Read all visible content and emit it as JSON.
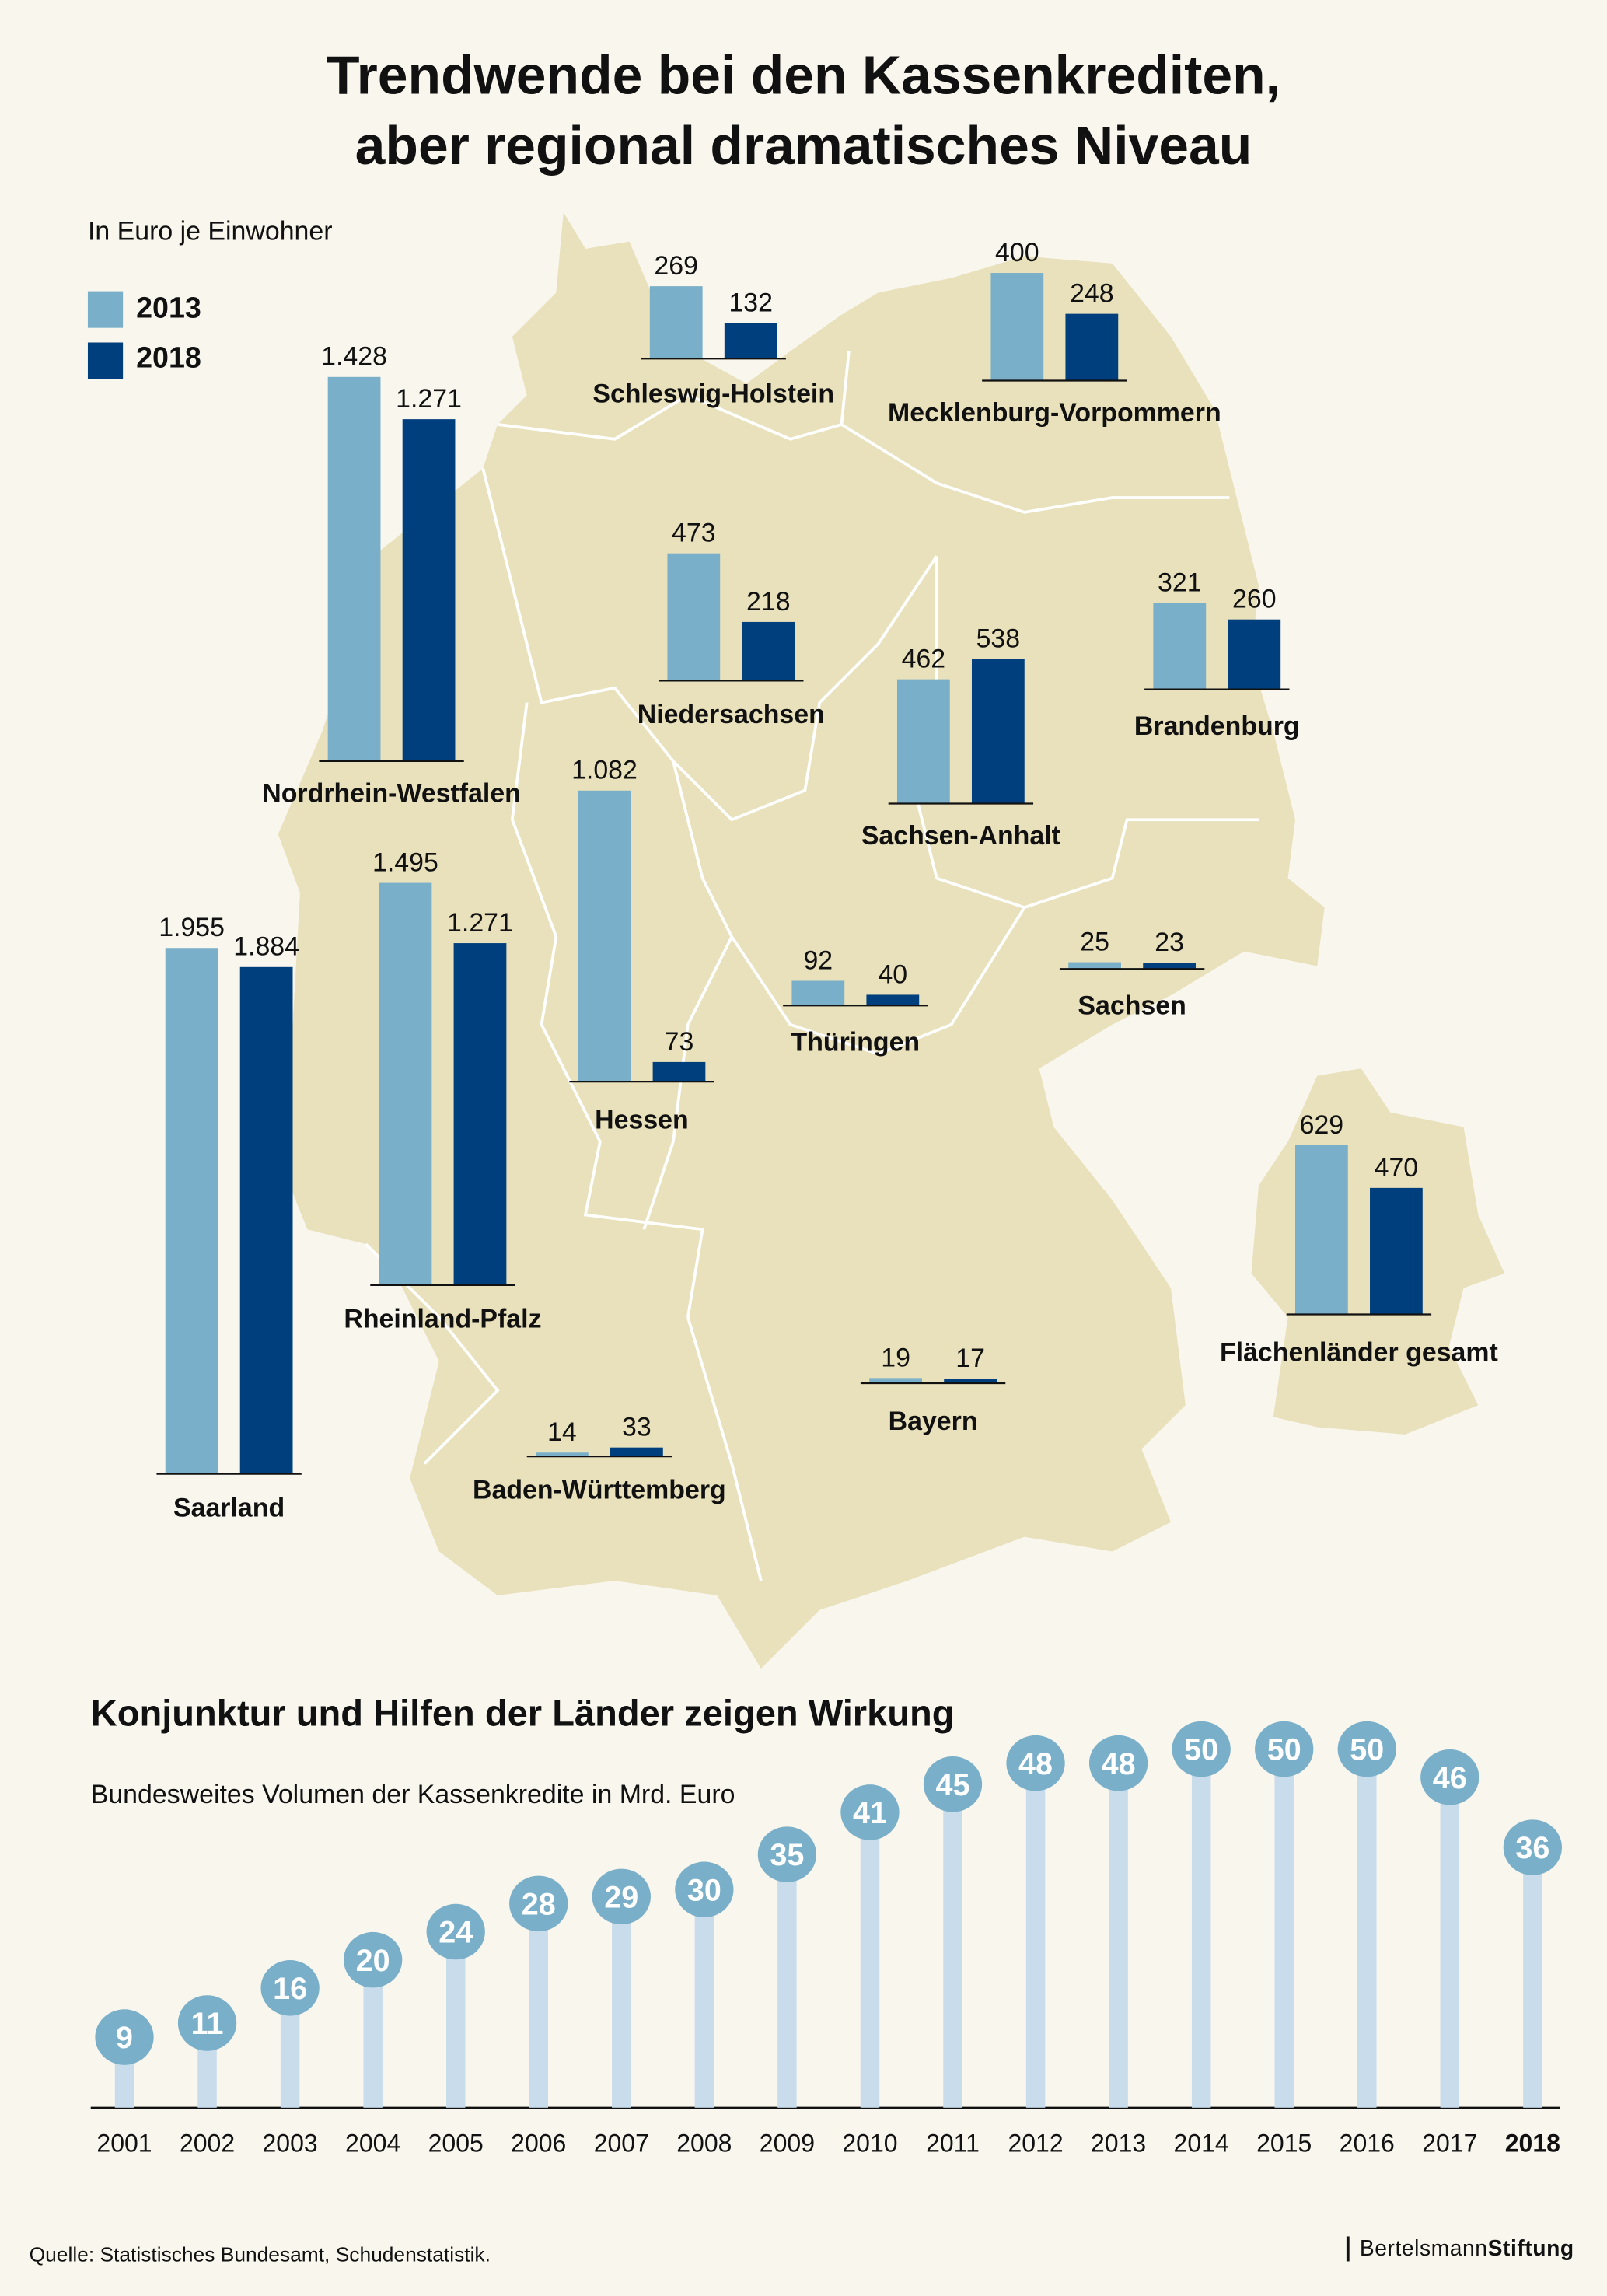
{
  "title_line1": "Trendwende bei den Kassenkrediten,",
  "title_line2": "aber regional dramatisches Niveau",
  "unit_label": "In Euro je Einwohner",
  "colors": {
    "y2013": "#7aafc9",
    "y2018": "#003f7d",
    "map": "#e8e1bb",
    "stem": "#c8dceb",
    "background": "#f9f6ee"
  },
  "chart_data": [
    {
      "type": "bar",
      "title": "Trendwende bei den Kassenkrediten, aber regional dramatisches Niveau",
      "ylabel": "In Euro je Einwohner",
      "legend": [
        {
          "name": "2013",
          "color": "#7aafc9"
        },
        {
          "name": "2018",
          "color": "#003f7d"
        }
      ],
      "categories": [
        "Schleswig-Holstein",
        "Mecklenburg-Vorpommern",
        "Nordrhein-Westfalen",
        "Niedersachsen",
        "Sachsen-Anhalt",
        "Brandenburg",
        "Hessen",
        "Rheinland-Pfalz",
        "Saarland",
        "Thüringen",
        "Sachsen",
        "Baden-Württemberg",
        "Bayern",
        "Flächenländer gesamt"
      ],
      "series": [
        {
          "name": "2013",
          "values": [
            269,
            400,
            1428,
            473,
            462,
            321,
            1082,
            1495,
            1955,
            92,
            25,
            14,
            19,
            629
          ],
          "labels": [
            "269",
            "400",
            "1.428",
            "473",
            "462",
            "321",
            "1.082",
            "1.495",
            "1.955",
            "92",
            "25",
            "14",
            "19",
            "629"
          ]
        },
        {
          "name": "2018",
          "values": [
            132,
            248,
            1271,
            218,
            538,
            260,
            73,
            1271,
            1884,
            40,
            23,
            33,
            17,
            470
          ],
          "labels": [
            "132",
            "248",
            "1.271",
            "218",
            "538",
            "260",
            "73",
            "1.271",
            "1.884",
            "40",
            "23",
            "33",
            "17",
            "470"
          ]
        }
      ]
    },
    {
      "type": "bar",
      "title": "Konjunktur und Hilfen der Länder zeigen Wirkung",
      "subtitle": "Bundesweites Volumen der Kassenkredite in Mrd. Euro",
      "categories": [
        "2001",
        "2002",
        "2003",
        "2004",
        "2005",
        "2006",
        "2007",
        "2008",
        "2009",
        "2010",
        "2011",
        "2012",
        "2013",
        "2014",
        "2015",
        "2016",
        "2017",
        "2018"
      ],
      "values": [
        9,
        11,
        16,
        20,
        24,
        28,
        29,
        30,
        35,
        41,
        45,
        48,
        48,
        50,
        50,
        50,
        46,
        36
      ],
      "highlight_category": "2018"
    }
  ],
  "source": "Quelle: Statistisches Bundesamt, Schudenstatistik.",
  "logo": {
    "part1": "Bertelsmann",
    "part2": "Stiftung"
  }
}
